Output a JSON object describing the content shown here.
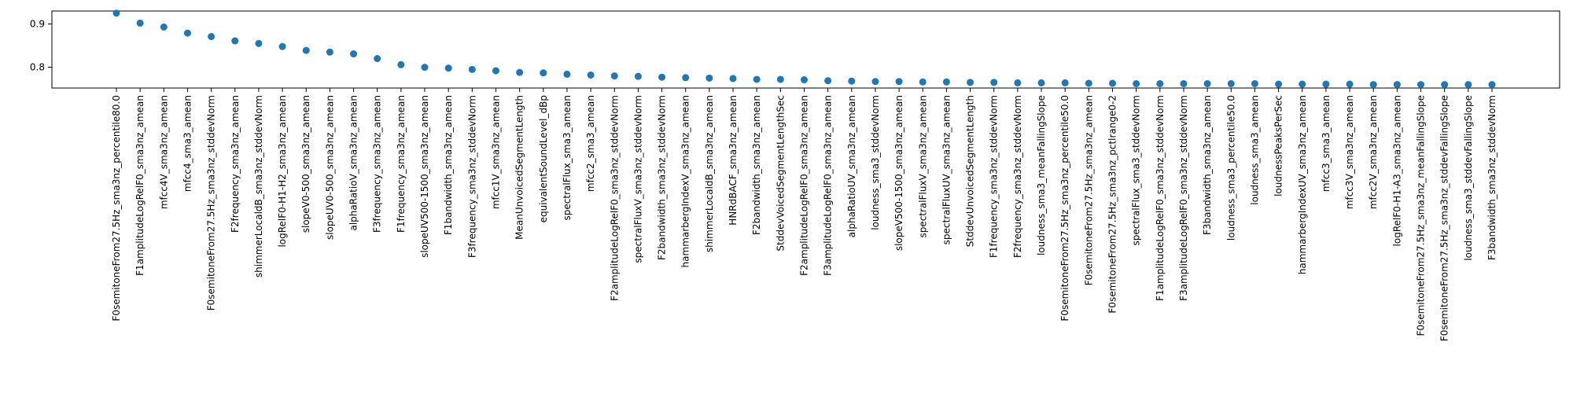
{
  "chart_data": {
    "type": "scatter",
    "title": "",
    "xlabel": "",
    "ylabel": "",
    "ylim": [
      0.752,
      0.93
    ],
    "yticks": [
      0.8,
      0.9
    ],
    "ytick_labels": [
      "0.8",
      "0.9"
    ],
    "grid": false,
    "marker_color": "#1f77b4",
    "categories": [
      "F0semitoneFrom27.5Hz_sma3nz_percentile80.0",
      "F1amplitudeLogRelF0_sma3nz_amean",
      "mfcc4V_sma3nz_amean",
      "mfcc4_sma3_amean",
      "F0semitoneFrom27.5Hz_sma3nz_stddevNorm",
      "F2frequency_sma3nz_amean",
      "shimmerLocaldB_sma3nz_stddevNorm",
      "logRelF0-H1-H2_sma3nz_amean",
      "slopeV0-500_sma3nz_amean",
      "slopeUV0-500_sma3nz_amean",
      "alphaRatioV_sma3nz_amean",
      "F3frequency_sma3nz_amean",
      "F1frequency_sma3nz_amean",
      "slopeUV500-1500_sma3nz_amean",
      "F1bandwidth_sma3nz_amean",
      "F3frequency_sma3nz_stddevNorm",
      "mfcc1V_sma3nz_amean",
      "MeanUnvoicedSegmentLength",
      "equivalentSoundLevel_dBp",
      "spectralFlux_sma3_amean",
      "mfcc2_sma3_amean",
      "F2amplitudeLogRelF0_sma3nz_stddevNorm",
      "spectralFluxV_sma3nz_stddevNorm",
      "F2bandwidth_sma3nz_stddevNorm",
      "hammarbergIndexV_sma3nz_amean",
      "shimmerLocaldB_sma3nz_amean",
      "HNRdBACF_sma3nz_amean",
      "F2bandwidth_sma3nz_amean",
      "StddevVoicedSegmentLengthSec",
      "F2amplitudeLogRelF0_sma3nz_amean",
      "F3amplitudeLogRelF0_sma3nz_amean",
      "alphaRatioUV_sma3nz_amean",
      "loudness_sma3_stddevNorm",
      "slopeV500-1500_sma3nz_amean",
      "spectralFluxV_sma3nz_amean",
      "spectralFluxUV_sma3nz_amean",
      "StddevUnvoicedSegmentLength",
      "F1frequency_sma3nz_stddevNorm",
      "F2frequency_sma3nz_stddevNorm",
      "loudness_sma3_meanFallingSlope",
      "F0semitoneFrom27.5Hz_sma3nz_percentile50.0",
      "F0semitoneFrom27.5Hz_sma3nz_amean",
      "F0semitoneFrom27.5Hz_sma3nz_pctlrange0-2",
      "spectralFlux_sma3_stddevNorm",
      "F1amplitudeLogRelF0_sma3nz_stddevNorm",
      "F3amplitudeLogRelF0_sma3nz_stddevNorm",
      "F3bandwidth_sma3nz_amean",
      "loudness_sma3_percentile50.0",
      "loudness_sma3_amean",
      "loudnessPeaksPerSec",
      "hammarbergIndexUV_sma3nz_amean",
      "mfcc3_sma3_amean",
      "mfcc3V_sma3nz_amean",
      "mfcc2V_sma3nz_amean",
      "logRelF0-H1-A3_sma3nz_amean",
      "F0semitoneFrom27.5Hz_sma3nz_meanFallingSlope",
      "F0semitoneFrom27.5Hz_sma3nz_stddevFallingSlope",
      "loudness_sma3_stddevFallingSlope",
      "F3bandwidth_sma3nz_stddevNorm"
    ],
    "values": [
      0.925,
      0.902,
      0.893,
      0.879,
      0.871,
      0.861,
      0.855,
      0.848,
      0.839,
      0.835,
      0.831,
      0.82,
      0.806,
      0.8,
      0.798,
      0.795,
      0.792,
      0.788,
      0.787,
      0.784,
      0.782,
      0.78,
      0.779,
      0.777,
      0.776,
      0.775,
      0.774,
      0.772,
      0.772,
      0.771,
      0.769,
      0.768,
      0.767,
      0.767,
      0.766,
      0.766,
      0.765,
      0.765,
      0.764,
      0.764,
      0.764,
      0.763,
      0.763,
      0.762,
      0.762,
      0.762,
      0.762,
      0.762,
      0.762,
      0.761,
      0.761,
      0.761,
      0.761,
      0.76,
      0.76,
      0.76,
      0.76,
      0.76,
      0.76
    ]
  }
}
